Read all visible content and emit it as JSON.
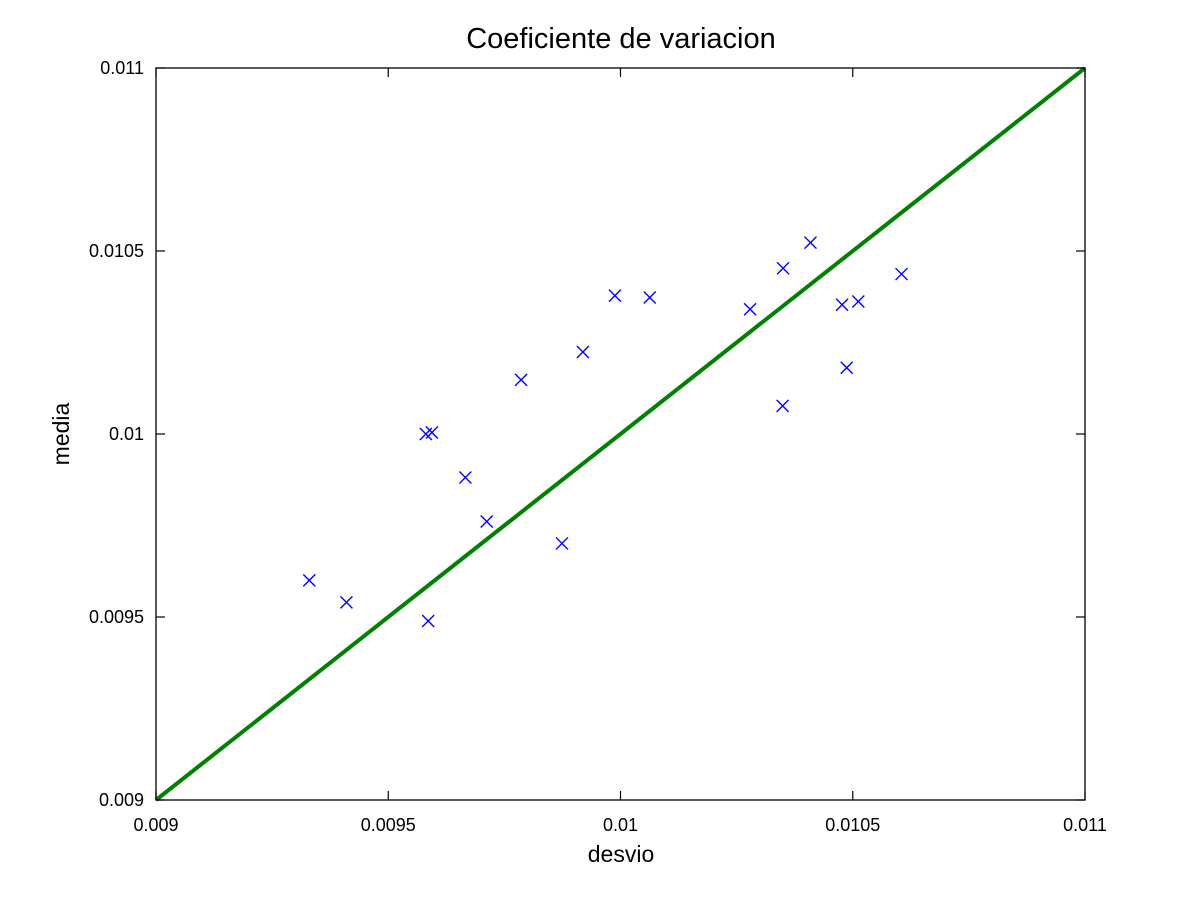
{
  "chart_data": {
    "type": "scatter",
    "title": "Coeficiente de variacion",
    "xlabel": "desvio",
    "ylabel": "media",
    "xlim": [
      0.009,
      0.011
    ],
    "ylim": [
      0.009,
      0.011
    ],
    "x_ticks": [
      {
        "value": 0.009,
        "label": "0.009"
      },
      {
        "value": 0.0095,
        "label": "0.0095"
      },
      {
        "value": 0.01,
        "label": "0.01"
      },
      {
        "value": 0.0105,
        "label": "0.0105"
      },
      {
        "value": 0.011,
        "label": "0.011"
      }
    ],
    "y_ticks": [
      {
        "value": 0.009,
        "label": "0.009"
      },
      {
        "value": 0.0095,
        "label": "0.0095"
      },
      {
        "value": 0.01,
        "label": "0.01"
      },
      {
        "value": 0.0105,
        "label": "0.0105"
      },
      {
        "value": 0.011,
        "label": "0.011"
      }
    ],
    "grid": false,
    "marker_color": "#0000ff",
    "reference_line_color": "#008000",
    "series": [
      {
        "type": "scatter",
        "marker": "x",
        "points": [
          {
            "x": 0.00933,
            "y": 0.0096
          },
          {
            "x": 0.00941,
            "y": 0.00954
          },
          {
            "x": 0.009586,
            "y": 0.009489
          },
          {
            "x": 0.009581,
            "y": 0.01
          },
          {
            "x": 0.009594,
            "y": 0.010004
          },
          {
            "x": 0.009666,
            "y": 0.009881
          },
          {
            "x": 0.009712,
            "y": 0.009761
          },
          {
            "x": 0.009786,
            "y": 0.010148
          },
          {
            "x": 0.009874,
            "y": 0.009701
          },
          {
            "x": 0.009919,
            "y": 0.010224
          },
          {
            "x": 0.009988,
            "y": 0.010378
          },
          {
            "x": 0.010063,
            "y": 0.010373
          },
          {
            "x": 0.010279,
            "y": 0.010341
          },
          {
            "x": 0.010349,
            "y": 0.010077
          },
          {
            "x": 0.01035,
            "y": 0.010453
          },
          {
            "x": 0.010409,
            "y": 0.010523
          },
          {
            "x": 0.010477,
            "y": 0.010353
          },
          {
            "x": 0.010487,
            "y": 0.010181
          },
          {
            "x": 0.010512,
            "y": 0.010362
          },
          {
            "x": 0.010605,
            "y": 0.010437
          }
        ]
      },
      {
        "type": "line",
        "points": [
          {
            "x": 0.009,
            "y": 0.009
          },
          {
            "x": 0.011,
            "y": 0.011
          }
        ]
      }
    ]
  }
}
